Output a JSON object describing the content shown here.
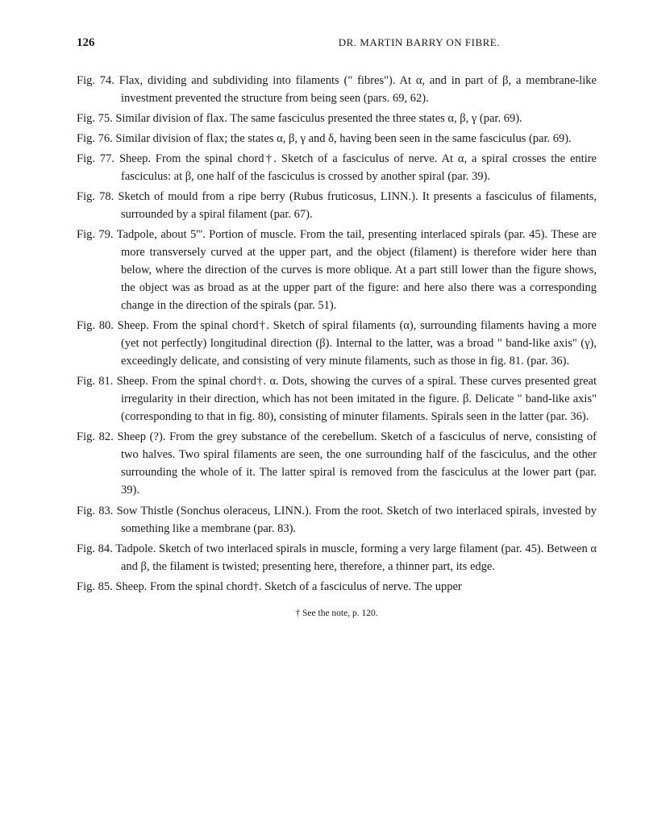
{
  "header": {
    "pageNumber": "126",
    "title": "DR. MARTIN BARRY ON FIBRE."
  },
  "entries": [
    {
      "label": "Fig. 74.",
      "text": "Flax, dividing and subdividing into filaments (\" fibres\"). At α, and in part of β, a membrane-like investment prevented the structure from being seen (pars. 69, 62)."
    },
    {
      "label": "Fig. 75.",
      "text": "Similar division of flax. The same fasciculus presented the three states α, β, γ (par. 69)."
    },
    {
      "label": "Fig. 76.",
      "text": "Similar division of flax; the states α, β, γ and δ, having been seen in the same fasciculus (par. 69)."
    },
    {
      "label": "Fig. 77.",
      "text": "Sheep. From the spinal chord†. Sketch of a fasciculus of nerve. At α, a spiral crosses the entire fasciculus: at β, one half of the fasciculus is crossed by another spiral (par. 39)."
    },
    {
      "label": "Fig. 78.",
      "text": "Sketch of mould from a ripe berry (Rubus fruticosus, LINN.). It presents a fasciculus of filaments, surrounded by a spiral filament (par. 67)."
    },
    {
      "label": "Fig. 79.",
      "text": "Tadpole, about 5'''. Portion of muscle. From the tail, presenting interlaced spirals (par. 45). These are more transversely curved at the upper part, and the object (filament) is therefore wider here than below, where the direction of the curves is more oblique. At a part still lower than the figure shows, the object was as broad as at the upper part of the figure: and here also there was a corresponding change in the direction of the spirals (par. 51)."
    },
    {
      "label": "Fig. 80.",
      "text": "Sheep. From the spinal chord†. Sketch of spiral filaments (α), surrounding filaments having a more (yet not perfectly) longitudinal direction (β). Internal to the latter, was a broad \" band-like axis\" (γ), exceedingly delicate, and consisting of very minute filaments, such as those in fig. 81. (par. 36)."
    },
    {
      "label": "Fig. 81.",
      "text": "Sheep. From the spinal chord†. α. Dots, showing the curves of a spiral. These curves presented great irregularity in their direction, which has not been imitated in the figure. β. Delicate \" band-like axis\" (corresponding to that in fig. 80), consisting of minuter filaments. Spirals seen in the latter (par. 36)."
    },
    {
      "label": "Fig. 82.",
      "text": "Sheep (?). From the grey substance of the cerebellum. Sketch of a fasciculus of nerve, consisting of two halves. Two spiral filaments are seen, the one surrounding half of the fasciculus, and the other surrounding the whole of it. The latter spiral is removed from the fasciculus at the lower part (par. 39)."
    },
    {
      "label": "Fig. 83.",
      "text": "Sow Thistle (Sonchus oleraceus, LINN.). From the root. Sketch of two interlaced spirals, invested by something like a membrane (par. 83)."
    },
    {
      "label": "Fig. 84.",
      "text": "Tadpole. Sketch of two interlaced spirals in muscle, forming a very large filament (par. 45). Between α and β, the filament is twisted; presenting here, therefore, a thinner part, its edge."
    },
    {
      "label": "Fig. 85.",
      "text": "Sheep. From the spinal chord†. Sketch of a fasciculus of nerve. The upper"
    }
  ],
  "footnote": "† See the note, p. 120."
}
